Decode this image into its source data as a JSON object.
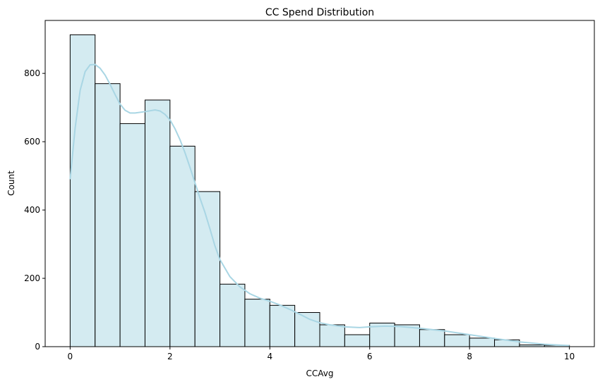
{
  "chart_data": {
    "type": "bar",
    "title": "CC Spend Distribution",
    "xlabel": "CCAvg",
    "ylabel": "Count",
    "xlim": [
      -0.5,
      10.5
    ],
    "ylim": [
      0,
      955
    ],
    "xticks": [
      0,
      2,
      4,
      6,
      8,
      10
    ],
    "yticks": [
      0,
      200,
      400,
      600,
      800
    ],
    "grid": false,
    "legend": "none",
    "bin_edges": [
      0,
      0.5,
      1,
      1.5,
      2,
      2.5,
      3,
      3.5,
      4,
      4.5,
      5,
      5.5,
      6,
      6.5,
      7,
      7.5,
      8,
      8.5,
      9,
      9.5,
      10
    ],
    "values": [
      913,
      770,
      653,
      722,
      587,
      454,
      183,
      139,
      121,
      100,
      64,
      35,
      69,
      64,
      50,
      35,
      25,
      20,
      5,
      4
    ],
    "kde": {
      "x": [
        0,
        0.1,
        0.2,
        0.3,
        0.4,
        0.5,
        0.6,
        0.7,
        0.8,
        0.9,
        1.0,
        1.1,
        1.2,
        1.3,
        1.5,
        1.7,
        1.8,
        1.9,
        2.0,
        2.1,
        2.2,
        2.3,
        2.4,
        2.5,
        2.6,
        2.7,
        2.8,
        2.9,
        3.0,
        3.2,
        3.4,
        3.6,
        3.8,
        4.0,
        4.2,
        4.4,
        4.6,
        4.8,
        5.0,
        5.2,
        5.5,
        5.8,
        6.0,
        6.3,
        6.6,
        7.0,
        7.5,
        8.0,
        8.5,
        9.0,
        9.5,
        10.0
      ],
      "y": [
        490,
        640,
        750,
        805,
        825,
        826,
        815,
        795,
        768,
        738,
        710,
        692,
        684,
        684,
        688,
        693,
        690,
        680,
        664,
        638,
        606,
        568,
        525,
        480,
        435,
        393,
        345,
        295,
        255,
        205,
        175,
        155,
        142,
        133,
        122,
        109,
        95,
        80,
        70,
        64,
        58,
        56,
        58,
        60,
        59,
        54,
        46,
        35,
        24,
        14,
        7,
        3
      ]
    },
    "colors": {
      "bar_fill": "#d4ebf1",
      "bar_edge": "#000000",
      "kde_line": "#a9d6e4"
    }
  }
}
